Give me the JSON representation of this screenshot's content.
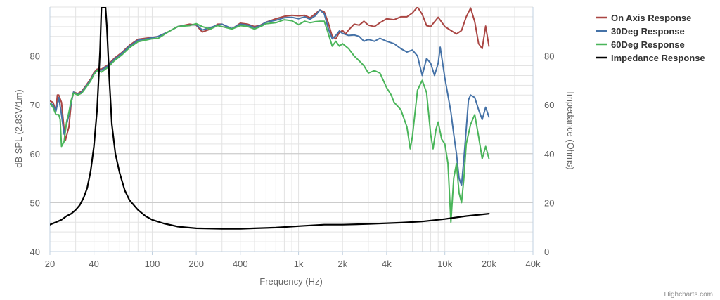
{
  "chart_data": {
    "type": "line",
    "title": "",
    "xlabel": "Frequency (Hz)",
    "ylabel": "dB SPL (2.83V/1m)",
    "y2label": "Impedance (Ohms)",
    "x_scale": "log",
    "xlim": [
      20,
      40000
    ],
    "ylim": [
      40,
      90
    ],
    "y2lim": [
      0,
      100
    ],
    "x_ticks": [
      20,
      40,
      100,
      200,
      400,
      1000,
      2000,
      4000,
      10000,
      20000,
      40000
    ],
    "x_tick_labels": [
      "20",
      "40",
      "100",
      "200",
      "400",
      "1k",
      "2k",
      "4k",
      "10k",
      "20k",
      "40k"
    ],
    "y_ticks": [
      40,
      50,
      60,
      70,
      80
    ],
    "y2_ticks": [
      0,
      20,
      40,
      60,
      80
    ],
    "grid": true,
    "legend_position": "top-right",
    "credits": "Highcharts.com",
    "series": [
      {
        "name": "On Axis Response",
        "color": "#aa4643",
        "axis": "left",
        "points": [
          [
            20,
            70.8
          ],
          [
            21,
            70.5
          ],
          [
            22,
            68.9
          ],
          [
            22.5,
            72.0
          ],
          [
            23,
            72.0
          ],
          [
            24,
            70.5
          ],
          [
            25,
            65.0
          ],
          [
            25.5,
            62.7
          ],
          [
            27,
            65.5
          ],
          [
            28,
            70.5
          ],
          [
            29,
            72.6
          ],
          [
            31,
            72.3
          ],
          [
            33,
            72.8
          ],
          [
            35,
            73.8
          ],
          [
            38,
            75.3
          ],
          [
            40,
            76.6
          ],
          [
            42,
            77.3
          ],
          [
            45,
            77.3
          ],
          [
            50,
            78.2
          ],
          [
            55,
            79.5
          ],
          [
            62,
            80.7
          ],
          [
            70,
            82.2
          ],
          [
            80,
            83.4
          ],
          [
            100,
            83.8
          ],
          [
            110,
            84.0
          ],
          [
            130,
            85.0
          ],
          [
            150,
            86.0
          ],
          [
            180,
            86.5
          ],
          [
            200,
            86.3
          ],
          [
            220,
            84.9
          ],
          [
            250,
            85.5
          ],
          [
            280,
            86.5
          ],
          [
            300,
            86.5
          ],
          [
            350,
            85.5
          ],
          [
            400,
            86.7
          ],
          [
            450,
            86.5
          ],
          [
            500,
            86.0
          ],
          [
            550,
            86.3
          ],
          [
            600,
            86.9
          ],
          [
            700,
            87.6
          ],
          [
            800,
            88.1
          ],
          [
            900,
            88.3
          ],
          [
            1000,
            88.2
          ],
          [
            1100,
            88.3
          ],
          [
            1200,
            87.8
          ],
          [
            1300,
            88.6
          ],
          [
            1400,
            89.4
          ],
          [
            1500,
            89.0
          ],
          [
            1600,
            86.7
          ],
          [
            1700,
            84.0
          ],
          [
            1800,
            83.5
          ],
          [
            1900,
            84.8
          ],
          [
            2000,
            85.2
          ],
          [
            2100,
            84.5
          ],
          [
            2200,
            85.3
          ],
          [
            2400,
            86.5
          ],
          [
            2600,
            86.3
          ],
          [
            2800,
            87.1
          ],
          [
            3000,
            86.3
          ],
          [
            3300,
            86.0
          ],
          [
            3600,
            86.8
          ],
          [
            4000,
            87.6
          ],
          [
            4500,
            87.4
          ],
          [
            5000,
            88.0
          ],
          [
            5500,
            88.0
          ],
          [
            6000,
            88.8
          ],
          [
            6500,
            90.0
          ],
          [
            7000,
            88.5
          ],
          [
            7500,
            86.2
          ],
          [
            8000,
            86.0
          ],
          [
            9000,
            87.9
          ],
          [
            10000,
            86.0
          ],
          [
            11000,
            85.2
          ],
          [
            12000,
            84.5
          ],
          [
            13000,
            85.2
          ],
          [
            14000,
            88.0
          ],
          [
            15000,
            89.8
          ],
          [
            16000,
            87.0
          ],
          [
            17000,
            82.5
          ],
          [
            18000,
            81.5
          ],
          [
            19000,
            86.1
          ],
          [
            20000,
            82.0
          ]
        ]
      },
      {
        "name": "30Deg Response",
        "color": "#4572a7",
        "axis": "left",
        "points": [
          [
            20,
            70.3
          ],
          [
            21,
            70.0
          ],
          [
            22,
            68.7
          ],
          [
            23,
            71.5
          ],
          [
            24,
            68.0
          ],
          [
            25,
            64.0
          ],
          [
            26,
            66.0
          ],
          [
            27,
            68.0
          ],
          [
            28,
            70.5
          ],
          [
            29,
            72.6
          ],
          [
            31,
            72.1
          ],
          [
            33,
            72.6
          ],
          [
            35,
            73.6
          ],
          [
            38,
            75.1
          ],
          [
            40,
            76.4
          ],
          [
            42,
            77.1
          ],
          [
            45,
            77.1
          ],
          [
            50,
            78.0
          ],
          [
            55,
            79.3
          ],
          [
            62,
            80.5
          ],
          [
            70,
            82.0
          ],
          [
            80,
            83.2
          ],
          [
            100,
            83.7
          ],
          [
            110,
            84.0
          ],
          [
            130,
            85.0
          ],
          [
            150,
            86.0
          ],
          [
            180,
            86.3
          ],
          [
            200,
            86.4
          ],
          [
            220,
            85.3
          ],
          [
            250,
            85.8
          ],
          [
            280,
            86.3
          ],
          [
            300,
            86.5
          ],
          [
            350,
            85.6
          ],
          [
            400,
            86.5
          ],
          [
            450,
            86.3
          ],
          [
            500,
            85.8
          ],
          [
            550,
            86.2
          ],
          [
            600,
            86.9
          ],
          [
            700,
            87.3
          ],
          [
            800,
            87.8
          ],
          [
            900,
            87.9
          ],
          [
            1000,
            87.6
          ],
          [
            1100,
            88.0
          ],
          [
            1200,
            87.5
          ],
          [
            1300,
            88.2
          ],
          [
            1400,
            89.4
          ],
          [
            1500,
            88.6
          ],
          [
            1600,
            85.5
          ],
          [
            1700,
            83.5
          ],
          [
            1800,
            84.2
          ],
          [
            1900,
            85.1
          ],
          [
            2000,
            84.6
          ],
          [
            2200,
            84.2
          ],
          [
            2400,
            84.3
          ],
          [
            2600,
            84.0
          ],
          [
            2800,
            83.0
          ],
          [
            3000,
            83.4
          ],
          [
            3300,
            83.0
          ],
          [
            3600,
            83.6
          ],
          [
            4000,
            83.0
          ],
          [
            4500,
            82.5
          ],
          [
            5000,
            81.5
          ],
          [
            5500,
            80.8
          ],
          [
            6000,
            81.2
          ],
          [
            6500,
            80.0
          ],
          [
            7000,
            76.0
          ],
          [
            7500,
            79.5
          ],
          [
            8000,
            78.5
          ],
          [
            8500,
            76.0
          ],
          [
            9000,
            78.5
          ],
          [
            9300,
            81.8
          ],
          [
            10000,
            75.5
          ],
          [
            11000,
            68.5
          ],
          [
            11500,
            64.0
          ],
          [
            12000,
            60.0
          ],
          [
            12500,
            55.0
          ],
          [
            13000,
            53.5
          ],
          [
            13500,
            59.0
          ],
          [
            14000,
            65.0
          ],
          [
            14500,
            71.0
          ],
          [
            15000,
            72.0
          ],
          [
            16000,
            71.5
          ],
          [
            17000,
            69.0
          ],
          [
            18000,
            67.0
          ],
          [
            19000,
            69.5
          ],
          [
            20000,
            67.5
          ]
        ]
      },
      {
        "name": "60Deg Response",
        "color": "#4ab55a",
        "axis": "left",
        "points": [
          [
            20,
            70.3
          ],
          [
            21,
            69.5
          ],
          [
            22,
            68.0
          ],
          [
            23,
            68.0
          ],
          [
            23.5,
            67.0
          ],
          [
            24,
            61.5
          ],
          [
            25,
            62.5
          ],
          [
            26,
            66.5
          ],
          [
            27,
            68.5
          ],
          [
            28,
            71.0
          ],
          [
            29,
            72.4
          ],
          [
            31,
            72.0
          ],
          [
            33,
            72.4
          ],
          [
            35,
            73.4
          ],
          [
            38,
            74.9
          ],
          [
            40,
            76.2
          ],
          [
            42,
            77.0
          ],
          [
            45,
            76.7
          ],
          [
            50,
            77.7
          ],
          [
            55,
            79.0
          ],
          [
            62,
            80.2
          ],
          [
            70,
            81.7
          ],
          [
            80,
            82.9
          ],
          [
            100,
            83.5
          ],
          [
            110,
            83.6
          ],
          [
            130,
            85.0
          ],
          [
            150,
            86.0
          ],
          [
            180,
            86.2
          ],
          [
            200,
            86.6
          ],
          [
            220,
            86.0
          ],
          [
            250,
            85.5
          ],
          [
            280,
            86.2
          ],
          [
            300,
            86.0
          ],
          [
            350,
            85.5
          ],
          [
            400,
            86.2
          ],
          [
            450,
            86.0
          ],
          [
            500,
            85.5
          ],
          [
            550,
            86.0
          ],
          [
            600,
            86.6
          ],
          [
            700,
            86.8
          ],
          [
            800,
            87.4
          ],
          [
            900,
            87.2
          ],
          [
            1000,
            86.4
          ],
          [
            1100,
            87.1
          ],
          [
            1200,
            86.8
          ],
          [
            1300,
            87.0
          ],
          [
            1400,
            87.1
          ],
          [
            1500,
            87.1
          ],
          [
            1600,
            84.5
          ],
          [
            1700,
            82.0
          ],
          [
            1800,
            83.0
          ],
          [
            1900,
            82.0
          ],
          [
            2000,
            82.5
          ],
          [
            2200,
            81.5
          ],
          [
            2400,
            80.0
          ],
          [
            2600,
            79.0
          ],
          [
            2800,
            78.0
          ],
          [
            3000,
            76.5
          ],
          [
            3300,
            77.0
          ],
          [
            3600,
            76.5
          ],
          [
            4000,
            73.5
          ],
          [
            4300,
            72.0
          ],
          [
            4500,
            70.5
          ],
          [
            5000,
            69.0
          ],
          [
            5500,
            65.5
          ],
          [
            5800,
            61.0
          ],
          [
            6000,
            63.5
          ],
          [
            6500,
            73.0
          ],
          [
            7000,
            75.0
          ],
          [
            7500,
            72.5
          ],
          [
            8000,
            64.0
          ],
          [
            8300,
            61.0
          ],
          [
            8700,
            65.0
          ],
          [
            9000,
            66.5
          ],
          [
            9500,
            63.0
          ],
          [
            10000,
            62.0
          ],
          [
            10500,
            58.0
          ],
          [
            11000,
            46.0
          ],
          [
            11500,
            55.0
          ],
          [
            12000,
            58.0
          ],
          [
            12500,
            52.0
          ],
          [
            13000,
            50.0
          ],
          [
            13500,
            55.0
          ],
          [
            14000,
            62.0
          ],
          [
            15000,
            66.0
          ],
          [
            16000,
            68.0
          ],
          [
            17000,
            63.5
          ],
          [
            18000,
            59.0
          ],
          [
            19000,
            61.5
          ],
          [
            20000,
            59.0
          ]
        ]
      },
      {
        "name": "Impedance Response",
        "color": "#000000",
        "axis": "right",
        "points": [
          [
            20,
            11.0
          ],
          [
            22,
            12.0
          ],
          [
            24,
            13.0
          ],
          [
            26,
            14.5
          ],
          [
            28,
            15.5
          ],
          [
            30,
            17.0
          ],
          [
            32,
            19.0
          ],
          [
            34,
            22.0
          ],
          [
            36,
            26.0
          ],
          [
            38,
            33.0
          ],
          [
            40,
            43.0
          ],
          [
            42,
            58.0
          ],
          [
            44,
            82.0
          ],
          [
            45,
            100
          ],
          [
            48,
            100
          ],
          [
            49,
            92.0
          ],
          [
            51,
            70.0
          ],
          [
            53,
            52.0
          ],
          [
            56,
            40.0
          ],
          [
            60,
            32.0
          ],
          [
            65,
            25.0
          ],
          [
            70,
            21.0
          ],
          [
            80,
            17.0
          ],
          [
            90,
            14.5
          ],
          [
            100,
            13.0
          ],
          [
            120,
            11.5
          ],
          [
            150,
            10.2
          ],
          [
            200,
            9.5
          ],
          [
            300,
            9.3
          ],
          [
            400,
            9.3
          ],
          [
            500,
            9.5
          ],
          [
            700,
            9.8
          ],
          [
            1000,
            10.4
          ],
          [
            1500,
            11.0
          ],
          [
            2000,
            11.0
          ],
          [
            3000,
            11.3
          ],
          [
            5000,
            11.8
          ],
          [
            7000,
            12.3
          ],
          [
            10000,
            13.3
          ],
          [
            14000,
            14.5
          ],
          [
            20000,
            15.5
          ]
        ]
      }
    ]
  }
}
